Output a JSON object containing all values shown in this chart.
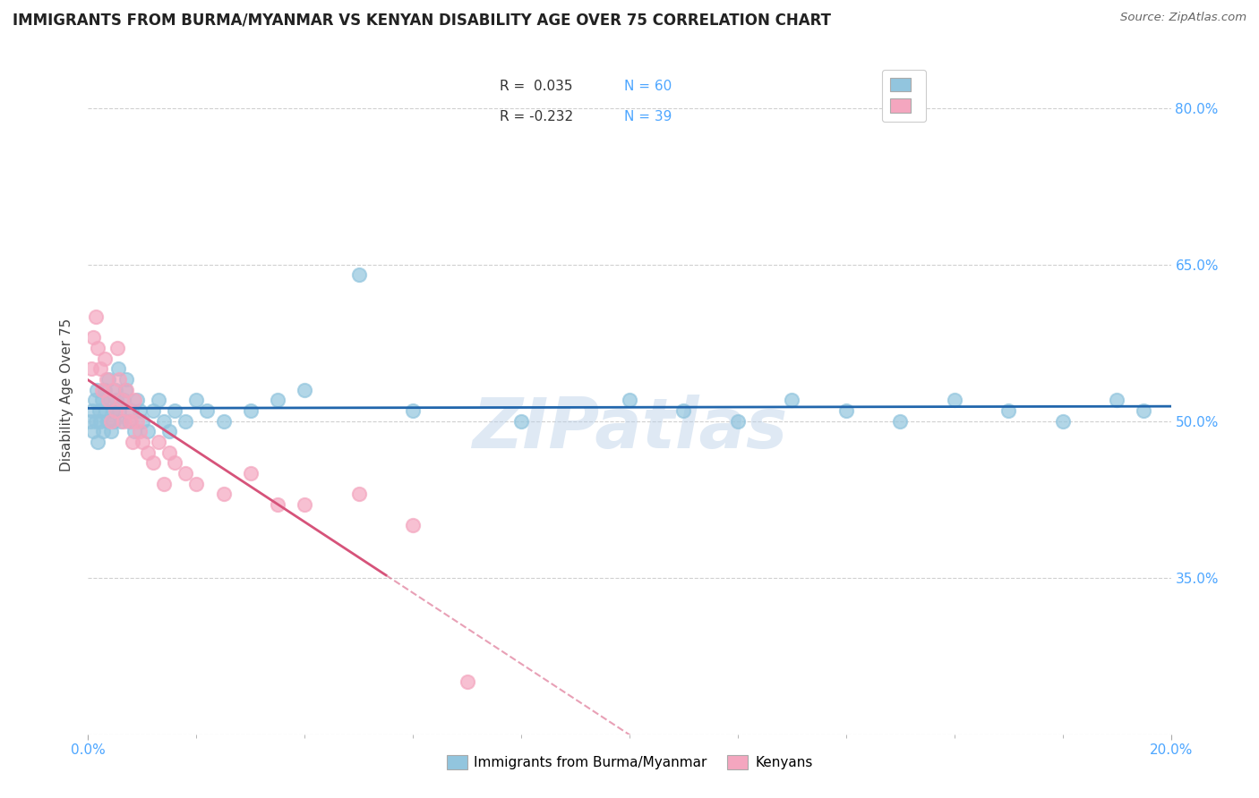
{
  "title": "IMMIGRANTS FROM BURMA/MYANMAR VS KENYAN DISABILITY AGE OVER 75 CORRELATION CHART",
  "source": "Source: ZipAtlas.com",
  "ylabel": "Disability Age Over 75",
  "xlim": [
    0.0,
    20.0
  ],
  "ylim": [
    20.0,
    85.0
  ],
  "yticks": [
    20.0,
    35.0,
    50.0,
    65.0,
    80.0
  ],
  "ytick_labels": [
    "",
    "35.0%",
    "50.0%",
    "65.0%",
    "80.0%"
  ],
  "xticks": [
    0.0,
    20.0
  ],
  "xtick_labels": [
    "0.0%",
    "20.0%"
  ],
  "blue_color": "#92c5de",
  "pink_color": "#f4a6bf",
  "blue_line_color": "#2166ac",
  "pink_line_color": "#d6537a",
  "ytick_color": "#4da6ff",
  "xtick_color": "#4da6ff",
  "watermark": "ZIPatlas",
  "blue_scatter_x": [
    0.05,
    0.08,
    0.1,
    0.12,
    0.14,
    0.16,
    0.18,
    0.2,
    0.22,
    0.25,
    0.28,
    0.3,
    0.32,
    0.35,
    0.38,
    0.4,
    0.42,
    0.45,
    0.48,
    0.5,
    0.52,
    0.55,
    0.58,
    0.6,
    0.65,
    0.68,
    0.7,
    0.75,
    0.8,
    0.85,
    0.9,
    0.95,
    1.0,
    1.1,
    1.2,
    1.3,
    1.4,
    1.5,
    1.6,
    1.8,
    2.0,
    2.2,
    2.5,
    3.0,
    3.5,
    4.0,
    5.0,
    6.0,
    8.0,
    10.0,
    11.0,
    12.0,
    13.0,
    14.0,
    15.0,
    16.0,
    17.0,
    18.0,
    19.0,
    19.5
  ],
  "blue_scatter_y": [
    50,
    51,
    49,
    52,
    50,
    53,
    48,
    51,
    50,
    52,
    49,
    53,
    51,
    50,
    54,
    52,
    49,
    51,
    50,
    53,
    52,
    55,
    51,
    50,
    52,
    53,
    54,
    50,
    51,
    49,
    52,
    51,
    50,
    49,
    51,
    52,
    50,
    49,
    51,
    50,
    52,
    51,
    50,
    51,
    52,
    53,
    64,
    51,
    50,
    52,
    51,
    50,
    52,
    51,
    50,
    52,
    51,
    50,
    52,
    51
  ],
  "pink_scatter_x": [
    0.06,
    0.1,
    0.14,
    0.18,
    0.22,
    0.26,
    0.3,
    0.34,
    0.38,
    0.42,
    0.46,
    0.5,
    0.54,
    0.58,
    0.62,
    0.66,
    0.7,
    0.74,
    0.78,
    0.82,
    0.86,
    0.9,
    0.95,
    1.0,
    1.1,
    1.2,
    1.3,
    1.4,
    1.5,
    1.6,
    1.8,
    2.0,
    2.5,
    3.0,
    3.5,
    4.0,
    5.0,
    6.0,
    7.0
  ],
  "pink_scatter_y": [
    55,
    58,
    60,
    57,
    55,
    53,
    56,
    54,
    52,
    50,
    53,
    51,
    57,
    54,
    52,
    50,
    53,
    51,
    50,
    48,
    52,
    50,
    49,
    48,
    47,
    46,
    48,
    44,
    47,
    46,
    45,
    44,
    43,
    45,
    42,
    42,
    43,
    40,
    25
  ],
  "pink_solid_end_x": 5.5,
  "legend_entries": [
    {
      "label": "R =  0.035   N = 60",
      "color": "#92c5de"
    },
    {
      "label": "R = -0.232   N = 39",
      "color": "#f4a6bf"
    }
  ]
}
